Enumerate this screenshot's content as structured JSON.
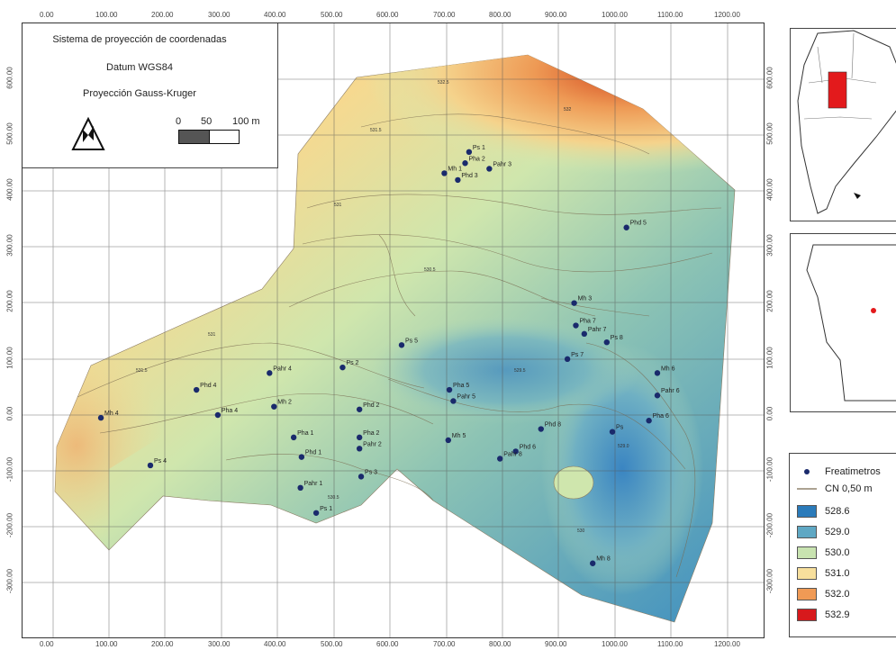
{
  "info": {
    "title": "Sistema de proyección de coordenadas",
    "datum": "Datum WGS84",
    "projection": "Proyección Gauss-Kruger",
    "scale_labels": [
      "0",
      "50",
      "100 m"
    ]
  },
  "axes": {
    "x_ticks": [
      "0.00",
      "100.00",
      "200.00",
      "300.00",
      "400.00",
      "500.00",
      "600.00",
      "700.00",
      "800.00",
      "900.00",
      "1000.00",
      "1100.00",
      "1200.00"
    ],
    "y_ticks": [
      "600.00",
      "500.00",
      "400.00",
      "300.00",
      "200.00",
      "100.00",
      "0.00",
      "-100.00",
      "-200.00",
      "-300.00"
    ]
  },
  "legend": {
    "point_label": "Freatimetros",
    "line_label": "CN 0,50 m",
    "classes": [
      {
        "label": "528.6",
        "color": "#2b7bba"
      },
      {
        "label": "529.0",
        "color": "#5fa8c4"
      },
      {
        "label": "530.0",
        "color": "#c8e3b0"
      },
      {
        "label": "531.0",
        "color": "#f7df9c"
      },
      {
        "label": "532.0",
        "color": "#f09a55"
      },
      {
        "label": "532.9",
        "color": "#d7191c"
      }
    ]
  },
  "points": [
    {
      "name": "Ps 1",
      "x": 740,
      "y": 470
    },
    {
      "name": "Pha 2",
      "x": 733,
      "y": 450
    },
    {
      "name": "Pahr 3",
      "x": 776,
      "y": 440
    },
    {
      "name": "Mh 1",
      "x": 696,
      "y": 432
    },
    {
      "name": "Phd 3",
      "x": 720,
      "y": 420
    },
    {
      "name": "Phd 5",
      "x": 1020,
      "y": 335
    },
    {
      "name": "Mh 3",
      "x": 927,
      "y": 200
    },
    {
      "name": "Pha 7",
      "x": 930,
      "y": 160
    },
    {
      "name": "Pahr 7",
      "x": 945,
      "y": 145
    },
    {
      "name": "Ps 8",
      "x": 985,
      "y": 130
    },
    {
      "name": "Ps 7",
      "x": 915,
      "y": 100
    },
    {
      "name": "Ps 5",
      "x": 620,
      "y": 125
    },
    {
      "name": "Ps 2",
      "x": 515,
      "y": 85
    },
    {
      "name": "Pahr 4",
      "x": 385,
      "y": 75
    },
    {
      "name": "Mh 6",
      "x": 1075,
      "y": 75
    },
    {
      "name": "Pha 5",
      "x": 705,
      "y": 45
    },
    {
      "name": "Phd 4",
      "x": 255,
      "y": 45
    },
    {
      "name": "Pahr 5",
      "x": 712,
      "y": 25
    },
    {
      "name": "Pahr 6",
      "x": 1075,
      "y": 35
    },
    {
      "name": "Phd 2",
      "x": 545,
      "y": 10
    },
    {
      "name": "Mh 2",
      "x": 393,
      "y": 15
    },
    {
      "name": "Pha 4",
      "x": 293,
      "y": 0
    },
    {
      "name": "Mh 4",
      "x": 85,
      "y": -5
    },
    {
      "name": "Pha 6",
      "x": 1060,
      "y": -10
    },
    {
      "name": "Phd 8",
      "x": 868,
      "y": -25
    },
    {
      "name": "Pha 1",
      "x": 428,
      "y": -40
    },
    {
      "name": "Pha 2",
      "x": 545,
      "y": -40
    },
    {
      "name": "Ps",
      "x": 995,
      "y": -30
    },
    {
      "name": "Mh 5",
      "x": 703,
      "y": -45
    },
    {
      "name": "Pahr 2",
      "x": 545,
      "y": -60
    },
    {
      "name": "Phd 6",
      "x": 823,
      "y": -65
    },
    {
      "name": "Phd 1",
      "x": 442,
      "y": -75
    },
    {
      "name": "Pahr 8",
      "x": 795,
      "y": -78
    },
    {
      "name": "Ps 4",
      "x": 173,
      "y": -90
    },
    {
      "name": "Ps 3",
      "x": 548,
      "y": -110
    },
    {
      "name": "Pahr 1",
      "x": 440,
      "y": -130
    },
    {
      "name": "Ps 1",
      "x": 468,
      "y": -175
    },
    {
      "name": "Mh 8",
      "x": 960,
      "y": -265
    }
  ],
  "contour_labels": [
    "528.6",
    "529.0",
    "529.5",
    "530",
    "530.5",
    "531",
    "531.5",
    "532",
    "532.5"
  ]
}
